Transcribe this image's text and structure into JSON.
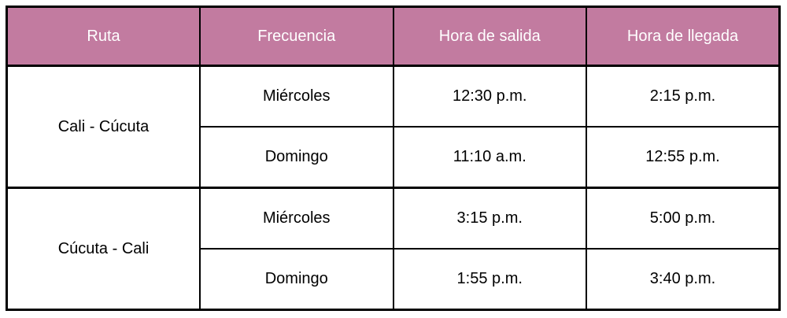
{
  "table": {
    "headers": {
      "route": "Ruta",
      "frequency": "Frecuencia",
      "departure": "Hora de salida",
      "arrival": "Hora de llegada"
    },
    "groups": [
      {
        "route": "Cali - Cúcuta",
        "schedules": [
          {
            "frequency": "Miércoles",
            "departure": "12:30 p.m.",
            "arrival": "2:15 p.m."
          },
          {
            "frequency": "Domingo",
            "departure": "11:10 a.m.",
            "arrival": "12:55 p.m."
          }
        ]
      },
      {
        "route": "Cúcuta - Cali",
        "schedules": [
          {
            "frequency": "Miércoles",
            "departure": "3:15 p.m.",
            "arrival": "5:00 p.m."
          },
          {
            "frequency": "Domingo",
            "departure": "1:55 p.m.",
            "arrival": "3:40 p.m."
          }
        ]
      }
    ],
    "colors": {
      "header_bg": "#c27ba0",
      "header_text": "#ffffff",
      "body_text": "#000000",
      "border": "#000000"
    }
  }
}
